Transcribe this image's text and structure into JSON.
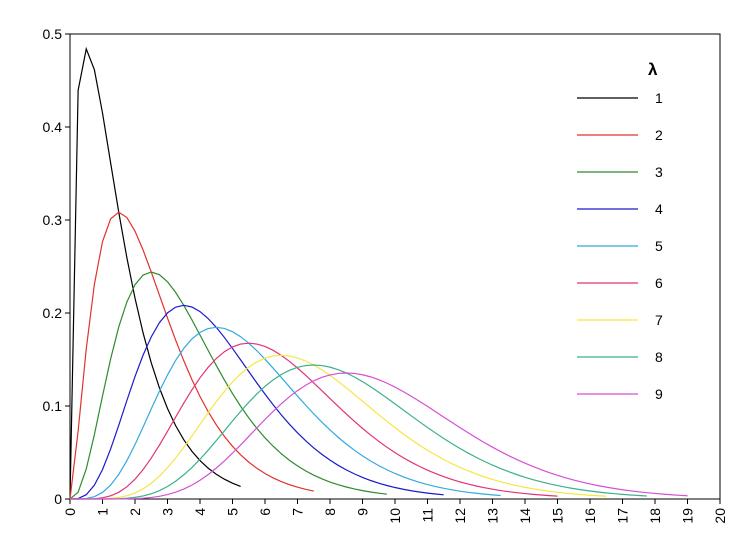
{
  "chart_data": {
    "type": "line",
    "title": "",
    "xlabel": "",
    "ylabel": "",
    "xlim": [
      0,
      20
    ],
    "ylim": [
      0,
      0.5
    ],
    "x_ticks": [
      "0",
      "1",
      "2",
      "3",
      "4",
      "5",
      "6",
      "7",
      "8",
      "9",
      "10",
      "11",
      "12",
      "13",
      "14",
      "15",
      "16",
      "17",
      "18",
      "19",
      "20"
    ],
    "y_ticks": [
      "0",
      "0.1",
      "0.2",
      "0.3",
      "0.4",
      "0.5"
    ],
    "grid": false,
    "legend_title": "λ",
    "legend_position": "top-right",
    "series": [
      {
        "name": "1",
        "lambda": 1,
        "color": "#000000",
        "x_end": 5.3
      },
      {
        "name": "2",
        "lambda": 2,
        "color": "#e0332e",
        "x_end": 7.6
      },
      {
        "name": "3",
        "lambda": 3,
        "color": "#2e8b2e",
        "x_end": 9.8
      },
      {
        "name": "4",
        "lambda": 4,
        "color": "#1a1acc",
        "x_end": 11.5
      },
      {
        "name": "5",
        "lambda": 5,
        "color": "#33a9e0",
        "x_end": 13.3
      },
      {
        "name": "6",
        "lambda": 6,
        "color": "#e0337a",
        "x_end": 15.0
      },
      {
        "name": "7",
        "lambda": 7,
        "color": "#f5e642",
        "x_end": 16.5
      },
      {
        "name": "8",
        "lambda": 8,
        "color": "#3cb08a",
        "x_end": 17.8
      },
      {
        "name": "9",
        "lambda": 9,
        "color": "#d64fd6",
        "x_end": 19.0
      }
    ]
  }
}
